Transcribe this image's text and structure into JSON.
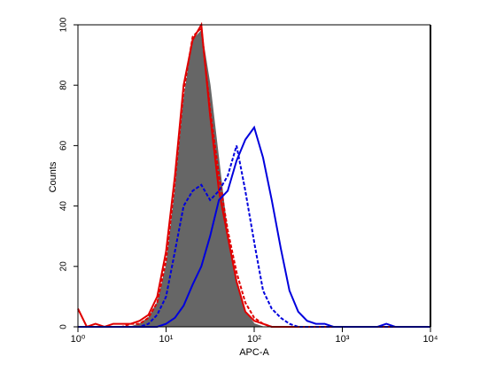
{
  "chart_data": {
    "type": "histogram-overlay",
    "x_label": "APC-A",
    "y_label": "Counts",
    "log_x": true,
    "xlim": [
      1,
      10000
    ],
    "ylim": [
      0,
      100
    ],
    "xticks": [
      {
        "value": 1,
        "label": "10⁰"
      },
      {
        "value": 10,
        "label": "10¹"
      },
      {
        "value": 100,
        "label": "10²"
      },
      {
        "value": 1000,
        "label": "10³"
      },
      {
        "value": 10000,
        "label": "10⁴"
      }
    ],
    "yticks": [
      0,
      20,
      40,
      60,
      80,
      100
    ],
    "x": [
      1,
      1.26,
      1.58,
      2,
      2.51,
      3.16,
      3.98,
      5.01,
      6.31,
      7.94,
      10,
      12.6,
      15.8,
      20,
      25.1,
      31.6,
      39.8,
      50.1,
      63.1,
      79.4,
      100,
      126,
      158,
      200,
      251,
      316,
      398,
      501,
      631,
      794,
      1000,
      1260,
      1580,
      2000,
      2510,
      3160,
      3980,
      5010,
      6310,
      7940,
      10000
    ],
    "series": [
      {
        "color": "#666666",
        "filled": true,
        "dashed": false,
        "values": [
          0,
          0,
          0,
          0,
          0,
          0,
          0,
          1,
          3,
          8,
          20,
          45,
          75,
          95,
          98,
          80,
          55,
          30,
          14,
          5,
          1,
          0,
          0,
          0,
          0,
          0,
          0,
          0,
          0,
          0,
          0,
          0,
          0,
          0,
          0,
          0,
          0,
          0,
          0,
          0,
          0
        ]
      },
      {
        "color": "#e00000",
        "filled": false,
        "dashed": false,
        "values": [
          6,
          0,
          1,
          0,
          1,
          1,
          1,
          2,
          4,
          10,
          25,
          50,
          80,
          95,
          100,
          70,
          45,
          30,
          15,
          5,
          2,
          1,
          0,
          0,
          0,
          0,
          0,
          0,
          0,
          0,
          0,
          0,
          0,
          0,
          0,
          0,
          0,
          0,
          0,
          0,
          0
        ]
      },
      {
        "color": "#e00000",
        "filled": false,
        "dashed": true,
        "values": [
          0,
          0,
          0,
          0,
          0,
          0,
          1,
          1,
          3,
          8,
          22,
          48,
          78,
          96,
          99,
          72,
          50,
          32,
          18,
          8,
          3,
          1,
          0,
          0,
          0,
          0,
          0,
          0,
          0,
          0,
          0,
          0,
          0,
          0,
          0,
          0,
          0,
          0,
          0,
          0,
          0
        ]
      },
      {
        "color": "#0000dd",
        "filled": false,
        "dashed": false,
        "values": [
          0,
          0,
          0,
          0,
          0,
          0,
          0,
          0,
          0,
          0,
          1,
          3,
          7,
          14,
          20,
          30,
          42,
          45,
          55,
          62,
          66,
          56,
          42,
          26,
          12,
          5,
          2,
          1,
          1,
          0,
          0,
          0,
          0,
          0,
          0,
          1,
          0,
          0,
          0,
          0,
          0
        ]
      },
      {
        "color": "#0000dd",
        "filled": false,
        "dashed": true,
        "values": [
          0,
          0,
          0,
          0,
          0,
          0,
          0,
          0,
          1,
          4,
          10,
          25,
          40,
          45,
          47,
          42,
          45,
          50,
          60,
          45,
          28,
          12,
          6,
          3,
          1,
          0,
          0,
          0,
          0,
          0,
          0,
          0,
          0,
          0,
          0,
          0,
          0,
          0,
          0,
          0,
          0
        ]
      }
    ]
  }
}
